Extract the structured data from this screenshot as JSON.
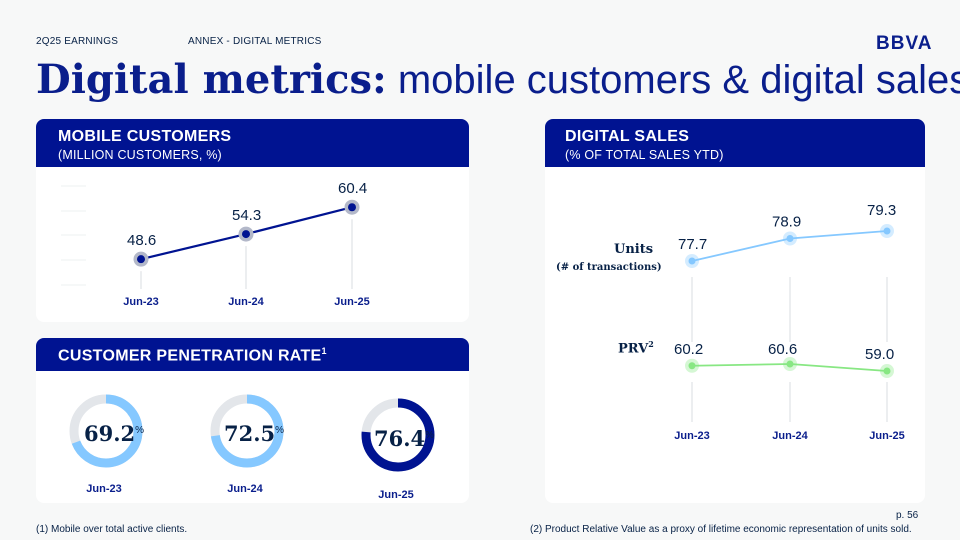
{
  "header": {
    "section": "2Q25 EARNINGS",
    "subsection": "ANNEX - DIGITAL METRICS",
    "logo": "BBVA"
  },
  "title": {
    "bold": "Digital metrics:",
    "rest": "mobile customers & digital sales"
  },
  "mobile_customers": {
    "heading": "MOBILE CUSTOMERS",
    "subheading": "(MILLION CUSTOMERS, %)"
  },
  "digital_sales": {
    "heading": "DIGITAL SALES",
    "subheading": "(% OF TOTAL SALES YTD)",
    "units_label": "Units",
    "units_sub": "(# of transactions)",
    "prv_label": "PRV",
    "prv_sup": "2"
  },
  "penetration": {
    "heading": "CUSTOMER PENETRATION RATE",
    "heading_sup": "1",
    "pct_symbol": "%"
  },
  "chart_data": [
    {
      "type": "line",
      "title": "MOBILE CUSTOMERS",
      "categories": [
        "Jun-23",
        "Jun-24",
        "Jun-25"
      ],
      "values": [
        48.6,
        54.3,
        60.4
      ],
      "labels": [
        "48.6",
        "54.3",
        "60.4"
      ],
      "ylim": [
        40,
        65
      ],
      "color": "#001391"
    },
    {
      "type": "line",
      "title": "DIGITAL SALES",
      "categories": [
        "Jun-23",
        "Jun-24",
        "Jun-25"
      ],
      "series": [
        {
          "name": "Units",
          "values": [
            77.7,
            78.9,
            79.3
          ],
          "labels": [
            "77.7",
            "78.9",
            "79.3"
          ],
          "color": "#85c8ff"
        },
        {
          "name": "PRV",
          "values": [
            60.2,
            60.6,
            59.0
          ],
          "labels": [
            "60.2",
            "60.6",
            "59.0"
          ],
          "color": "#88e783"
        }
      ]
    },
    {
      "type": "pie",
      "title": "CUSTOMER PENETRATION RATE",
      "categories": [
        "Jun-23",
        "Jun-24",
        "Jun-25"
      ],
      "values": [
        69.2,
        72.5,
        76.4
      ],
      "labels": [
        "69.2",
        "72.5",
        "76.4"
      ],
      "colors": [
        "#85c8ff",
        "#85c8ff",
        "#001391"
      ]
    }
  ],
  "footnotes": {
    "note1": "(1) Mobile over total active clients.",
    "note2": "(2) Product Relative Value as a proxy of lifetime economic representation of units sold."
  },
  "page": "p. 56"
}
